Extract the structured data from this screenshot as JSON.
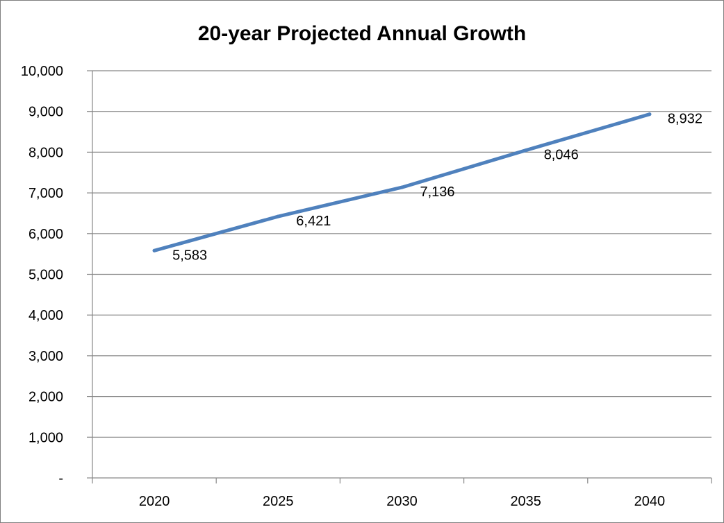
{
  "chart_data": {
    "type": "line",
    "title": "20-year Projected Annual Growth",
    "xlabel": "",
    "ylabel": "",
    "categories": [
      "2020",
      "2025",
      "2030",
      "2035",
      "2040"
    ],
    "series": [
      {
        "values": [
          5583,
          6421,
          7136,
          8046,
          8932
        ],
        "labels": [
          "5,583",
          "6,421",
          "7,136",
          "8,046",
          "8,932"
        ],
        "color": "#4f81bd"
      }
    ],
    "ylim": [
      0,
      10000
    ],
    "yticks": [
      0,
      1000,
      2000,
      3000,
      4000,
      5000,
      6000,
      7000,
      8000,
      9000,
      10000
    ],
    "ytick_labels": [
      "-",
      "1,000",
      "2,000",
      "3,000",
      "4,000",
      "5,000",
      "6,000",
      "7,000",
      "8,000",
      "9,000",
      "10,000"
    ],
    "grid": true,
    "legend": "none"
  },
  "colors": {
    "line": "#4f81bd",
    "grid": "#878787",
    "axis": "#878787",
    "border": "#7f7f7f"
  }
}
